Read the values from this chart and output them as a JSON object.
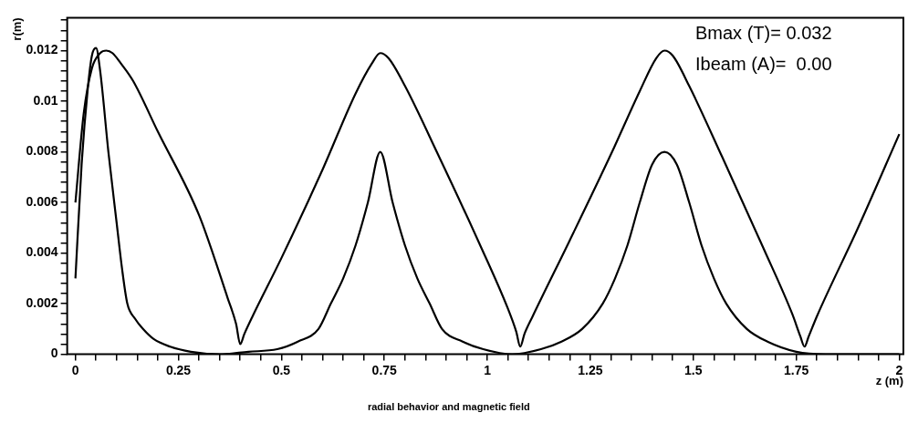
{
  "chart_data": {
    "type": "line",
    "xlabel": "z (m)",
    "ylabel": "r(m)",
    "annotations": [
      "Bmax (T)= 0.032",
      "Ibeam (A)=  0.00",
      "radial behavior and magnetic field"
    ],
    "xlim": [
      -0.02,
      2.01
    ],
    "ylim": [
      0,
      0.0133
    ],
    "xticks": [
      0,
      {
        "value": 0.05,
        "label": null
      },
      {
        "value": 0.1,
        "label": null
      },
      {
        "value": 0.15,
        "label": null
      },
      {
        "value": 0.2,
        "label": null
      },
      0.25,
      {
        "value": 0.3,
        "label": null
      },
      {
        "value": 0.35,
        "label": null
      },
      {
        "value": 0.4,
        "label": null
      },
      {
        "value": 0.45,
        "label": null
      },
      0.5,
      {
        "value": 0.55,
        "label": null
      },
      {
        "value": 0.6,
        "label": null
      },
      {
        "value": 0.65,
        "label": null
      },
      {
        "value": 0.7,
        "label": null
      },
      0.75,
      {
        "value": 0.8,
        "label": null
      },
      {
        "value": 0.85,
        "label": null
      },
      {
        "value": 0.9,
        "label": null
      },
      {
        "value": 0.95,
        "label": null
      },
      1,
      {
        "value": 1.05,
        "label": null
      },
      {
        "value": 1.1,
        "label": null
      },
      {
        "value": 1.15,
        "label": null
      },
      {
        "value": 1.2,
        "label": null
      },
      1.25,
      {
        "value": 1.3,
        "label": null
      },
      {
        "value": 1.35,
        "label": null
      },
      {
        "value": 1.4,
        "label": null
      },
      {
        "value": 1.45,
        "label": null
      },
      1.5,
      {
        "value": 1.55,
        "label": null
      },
      {
        "value": 1.6,
        "label": null
      },
      {
        "value": 1.65,
        "label": null
      },
      {
        "value": 1.7,
        "label": null
      },
      1.75,
      {
        "value": 1.8,
        "label": null
      },
      {
        "value": 1.85,
        "label": null
      },
      {
        "value": 1.9,
        "label": null
      },
      {
        "value": 1.95,
        "label": null
      },
      2
    ],
    "yticks": [
      0,
      {
        "value": 0.0004,
        "label": null
      },
      {
        "value": 0.0008,
        "label": null
      },
      {
        "value": 0.0012,
        "label": null
      },
      {
        "value": 0.0016,
        "label": null
      },
      0.002,
      {
        "value": 0.0024,
        "label": null
      },
      {
        "value": 0.0028,
        "label": null
      },
      {
        "value": 0.0032,
        "label": null
      },
      {
        "value": 0.0036,
        "label": null
      },
      0.004,
      {
        "value": 0.0044,
        "label": null
      },
      {
        "value": 0.0048,
        "label": null
      },
      {
        "value": 0.0052,
        "label": null
      },
      {
        "value": 0.0056,
        "label": null
      },
      0.006,
      {
        "value": 0.0064,
        "label": null
      },
      {
        "value": 0.0068,
        "label": null
      },
      {
        "value": 0.0072,
        "label": null
      },
      {
        "value": 0.0076,
        "label": null
      },
      0.008,
      {
        "value": 0.0084,
        "label": null
      },
      {
        "value": 0.0088,
        "label": null
      },
      {
        "value": 0.0092,
        "label": null
      },
      {
        "value": 0.0096,
        "label": null
      },
      0.01,
      {
        "value": 0.0104,
        "label": null
      },
      {
        "value": 0.0108,
        "label": null
      },
      {
        "value": 0.0112,
        "label": null
      },
      {
        "value": 0.0116,
        "label": null
      },
      0.012,
      {
        "value": 0.0124,
        "label": null
      },
      {
        "value": 0.0128,
        "label": null
      },
      {
        "value": 0.0132,
        "label": null
      }
    ],
    "grid": false,
    "legend": false,
    "marker": "none",
    "line_style": "solid",
    "series": [
      {
        "color": "#000000",
        "x": [
          0,
          0.02,
          0.04,
          0.06,
          0.075,
          0.09,
          0.11,
          0.14,
          0.2,
          0.3,
          0.37,
          0.39,
          0.4,
          0.41,
          0.43,
          0.5,
          0.6,
          0.68,
          0.72,
          0.74,
          0.76,
          0.8,
          0.88,
          0.98,
          1.05,
          1.07,
          1.08,
          1.09,
          1.11,
          1.2,
          1.3,
          1.37,
          1.41,
          1.43,
          1.45,
          1.49,
          1.57,
          1.67,
          1.74,
          1.76,
          1.77,
          1.78,
          1.8,
          1.9,
          2.0
        ],
        "values": [
          0.006,
          0.0095,
          0.0113,
          0.0119,
          0.012,
          0.0119,
          0.0115,
          0.0108,
          0.0088,
          0.0055,
          0.0022,
          0.0012,
          0.0004,
          0.0008,
          0.0015,
          0.0038,
          0.0073,
          0.0103,
          0.0115,
          0.0119,
          0.0117,
          0.0106,
          0.0079,
          0.0044,
          0.0018,
          0.0009,
          0.0003,
          0.0008,
          0.0015,
          0.0045,
          0.0079,
          0.0104,
          0.0117,
          0.012,
          0.0118,
          0.0106,
          0.0078,
          0.0042,
          0.0016,
          0.0007,
          0.0003,
          0.0007,
          0.0015,
          0.005,
          0.0087
        ]
      },
      {
        "color": "#000000",
        "x": [
          0,
          0.015,
          0.03,
          0.04,
          0.05,
          0.06,
          0.08,
          0.1,
          0.113,
          0.126,
          0.145,
          0.164,
          0.19,
          0.23,
          0.28,
          0.35,
          0.42,
          0.49,
          0.54,
          0.59,
          0.62,
          0.65,
          0.68,
          0.71,
          0.74,
          0.77,
          0.8,
          0.83,
          0.86,
          0.89,
          0.94,
          0.99,
          1.06,
          1.13,
          1.18,
          1.23,
          1.28,
          1.31,
          1.34,
          1.37,
          1.4,
          1.43,
          1.46,
          1.49,
          1.52,
          1.55,
          1.58,
          1.63,
          1.68,
          1.75,
          1.82,
          1.9,
          2.0
        ],
        "values": [
          0.003,
          0.0075,
          0.0105,
          0.0118,
          0.0121,
          0.0112,
          0.008,
          0.0052,
          0.0034,
          0.002,
          0.0014,
          0.001,
          0.0006,
          0.0003,
          0.0001,
          0,
          0.0001,
          0.0002,
          0.0005,
          0.001,
          0.002,
          0.003,
          0.0043,
          0.006,
          0.008,
          0.006,
          0.0043,
          0.003,
          0.002,
          0.001,
          0.0005,
          0.0002,
          0,
          0.0002,
          0.0005,
          0.001,
          0.002,
          0.003,
          0.0043,
          0.006,
          0.0075,
          0.008,
          0.0075,
          0.006,
          0.0043,
          0.003,
          0.002,
          0.001,
          0.0005,
          0.0001,
          0,
          0,
          0
        ]
      }
    ]
  }
}
